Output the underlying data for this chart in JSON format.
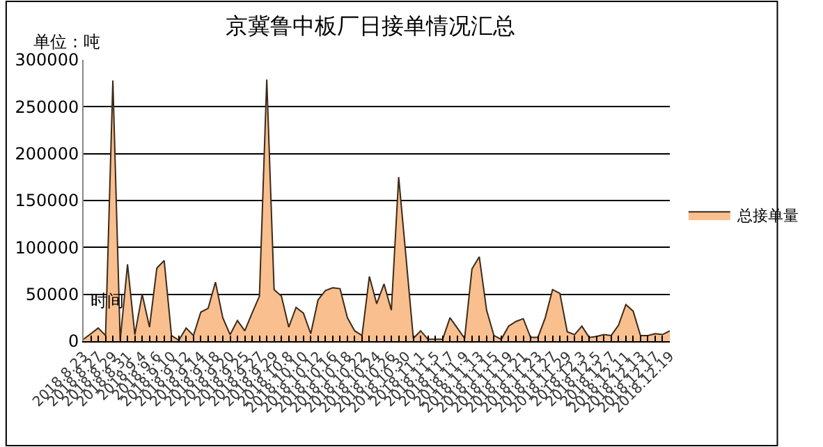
{
  "chart_data": {
    "type": "area",
    "title": "京冀鲁中板厂日接单情况汇总",
    "xlabel": "时间",
    "ylabel": "单位：吨",
    "categories": [
      "2018.8.23",
      null,
      "2018.8.27",
      null,
      "2018.8.29",
      null,
      "2018.8.31",
      null,
      "2018.9.4",
      null,
      "2018.9.6",
      null,
      "2018.9.10",
      null,
      "2018.9.12",
      null,
      "2018.9.14",
      null,
      "2018.9.18",
      null,
      "2018.9.20",
      null,
      "2018.9.25",
      null,
      "2018.9.27",
      null,
      "2018.9.29",
      null,
      "2018.10.8",
      null,
      "2018.10.10",
      null,
      "2018.10.12",
      null,
      "2018.10.16",
      null,
      "2018.10.18",
      null,
      "2018.10.22",
      null,
      "2018.10.24",
      null,
      "2018.10.26",
      null,
      "2018.10.30",
      null,
      "2018.11.1",
      null,
      "2018.11.5",
      null,
      "2018.11.7",
      null,
      "2018.11.9",
      null,
      "2018.11.13",
      null,
      "2018.11.15",
      null,
      "2018.11.19",
      null,
      "2018.11.21",
      null,
      "2018.11.23",
      null,
      "2018.11.27",
      null,
      "2018.11.29",
      null,
      "2018.12.3",
      null,
      "2018.12.5",
      null,
      "2018.12.7",
      null,
      "2018.12.11",
      null,
      "2018.12.13",
      null,
      "2018.12.17",
      null,
      "2018.12.19"
    ],
    "series": [
      {
        "name": "总接单量",
        "color": "#f9bf8f",
        "values": [
          2000,
          8000,
          14000,
          6000,
          278000,
          1000,
          82000,
          7000,
          50000,
          15000,
          78000,
          86000,
          6000,
          1000,
          14000,
          6000,
          31000,
          35000,
          63000,
          25000,
          7000,
          22000,
          11000,
          30000,
          48000,
          279000,
          55000,
          48000,
          15000,
          36000,
          30000,
          8000,
          44000,
          54000,
          57000,
          56000,
          25000,
          11000,
          6000,
          69000,
          40000,
          61000,
          33000,
          175000,
          90000,
          3000,
          11000,
          2000,
          2000,
          2000,
          25000,
          14000,
          3000,
          77000,
          90000,
          33000,
          6000,
          2000,
          16000,
          21000,
          24000,
          4000,
          4000,
          25000,
          55000,
          51000,
          10000,
          7000,
          16000,
          4000,
          5000,
          7000,
          6000,
          17000,
          39000,
          32000,
          6000,
          6000,
          8000,
          7000,
          11000
        ]
      }
    ],
    "ylim": [
      0,
      300000
    ],
    "yticks": [
      0,
      50000,
      100000,
      150000,
      200000,
      250000,
      300000
    ],
    "grid": "y",
    "legend": "right"
  }
}
